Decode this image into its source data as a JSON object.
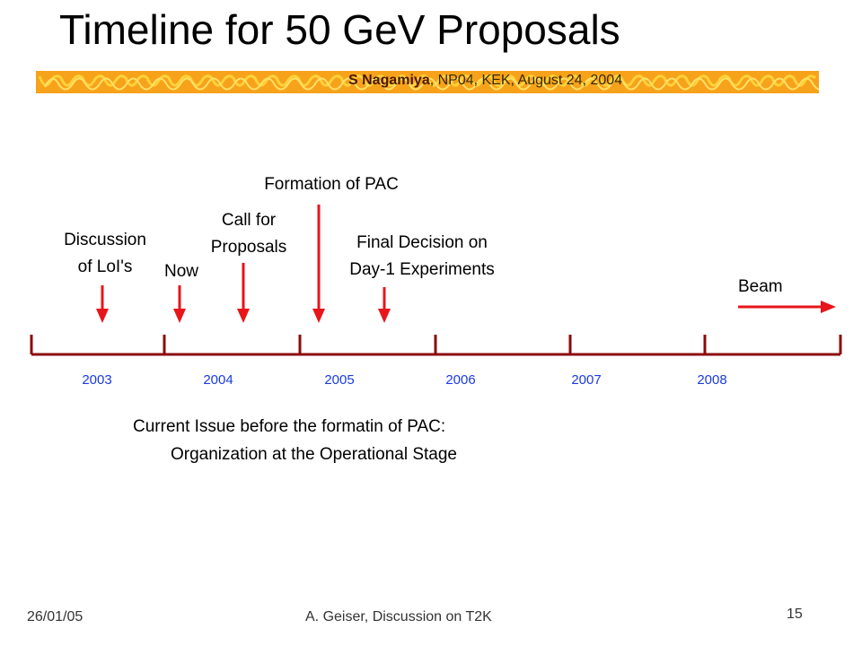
{
  "header": {
    "title": "Timeline for 50 GeV Proposals",
    "subtitle_author": "S Nagamiya",
    "subtitle_rest": ", NP04, KEK, August 24, 2004"
  },
  "events": [
    {
      "line1": "Discussion",
      "line2": "of LoI's"
    },
    {
      "line1": "Now",
      "line2": ""
    },
    {
      "line1": "Call for",
      "line2": "Proposals"
    },
    {
      "line1": "Formation of PAC",
      "line2": ""
    },
    {
      "line1": "Final Decision on",
      "line2": "Day-1 Experiments"
    },
    {
      "line1": "Beam",
      "line2": ""
    }
  ],
  "timeline": {
    "years": [
      "2003",
      "2004",
      "2005",
      "2006",
      "2007",
      "2008"
    ]
  },
  "issue": {
    "line1": "Current Issue before the formatin of PAC:",
    "line2": "Organization at the Operational Stage"
  },
  "footer": {
    "date": "26/01/05",
    "author": "A. Geiser,  Discussion on T2K",
    "page": "15"
  },
  "colors": {
    "timeline_line": "#8b0a0a",
    "arrow": "#e8151b",
    "year_text": "#1a3ae0",
    "banner_orange": "#f5a623",
    "banner_yellow": "#ffd23a"
  }
}
